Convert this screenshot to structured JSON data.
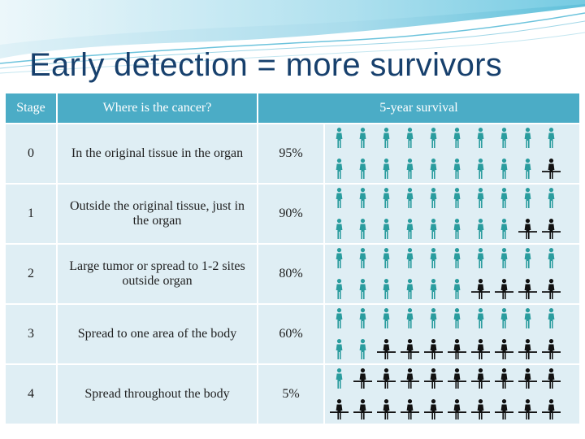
{
  "title": "Early detection = more survivors",
  "columns": {
    "stage": "Stage",
    "location": "Where is the cancer?",
    "survival": "5-year survival"
  },
  "colors": {
    "header_bg": "#4bacc6",
    "row_bg": "#dfeef4",
    "survivor_icon": "#2a9c9e",
    "non_survivor_icon": "#111111",
    "title_text": "#17406d"
  },
  "icons": {
    "survivor": "person-icon-teal",
    "non_survivor": "person-icon-black-on-line"
  },
  "rows": [
    {
      "stage": "0",
      "location": "In the original tissue in the organ",
      "survival": "95%",
      "survivors_of_20": 19
    },
    {
      "stage": "1",
      "location": "Outside the original tissue, just in the organ",
      "survival": "90%",
      "survivors_of_20": 18
    },
    {
      "stage": "2",
      "location": "Large tumor or spread to 1-2 sites outside organ",
      "survival": "80%",
      "survivors_of_20": 16
    },
    {
      "stage": "3",
      "location": "Spread to one area of the body",
      "survival": "60%",
      "survivors_of_20": 12
    },
    {
      "stage": "4",
      "location": "Spread throughout the body",
      "survival": "5%",
      "survivors_of_20": 1
    }
  ]
}
